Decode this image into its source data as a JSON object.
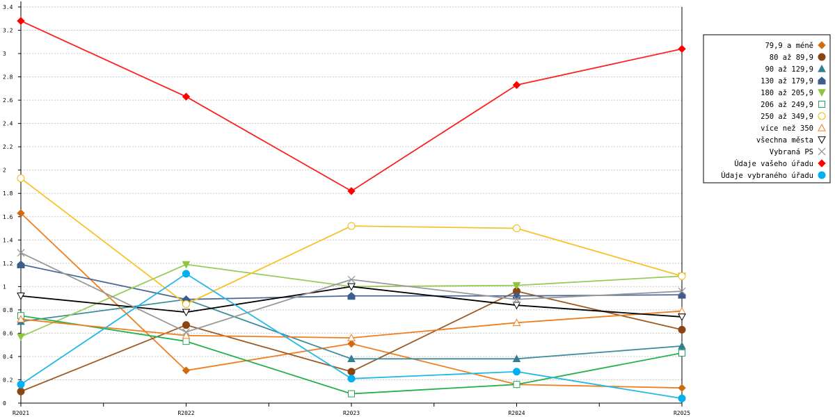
{
  "chart_data": {
    "type": "line",
    "title": "",
    "xlabel": "",
    "ylabel": "",
    "categories": [
      "R2021",
      "R2022",
      "R2023",
      "R2024",
      "R2025"
    ],
    "ylim": [
      0,
      3.4
    ],
    "yticks": [
      "0",
      "0.2",
      "0.4",
      "0.6",
      "0.8",
      "1",
      "1.2",
      "1.4",
      "1.6",
      "1.8",
      "2",
      "2.2",
      "2.4",
      "2.6",
      "2.8",
      "3",
      "3.2",
      "3.4"
    ],
    "grid": true,
    "legend_position": "right",
    "series": [
      {
        "name": "79,9 a méně",
        "color": "#f07d1e",
        "marker": "diamond",
        "marker_color": "#d06c10",
        "marker_fill": true,
        "values": [
          1.63,
          0.28,
          0.51,
          0.16,
          0.13
        ]
      },
      {
        "name": "80 až 89,9",
        "color": "#9c5a24",
        "marker": "circle",
        "marker_color": "#8b4513",
        "marker_fill": true,
        "values": [
          0.1,
          0.67,
          0.27,
          0.96,
          0.63
        ]
      },
      {
        "name": "90 až 129,9",
        "color": "#3d8b9e",
        "marker": "triangle-up",
        "marker_color": "#337e90",
        "marker_fill": true,
        "values": [
          0.7,
          0.89,
          0.38,
          0.38,
          0.49
        ]
      },
      {
        "name": "130 až 179,9",
        "color": "#4b6a95",
        "marker": "house",
        "marker_color": "#3b5e8c",
        "marker_fill": true,
        "values": [
          1.19,
          0.89,
          0.92,
          0.92,
          0.93
        ]
      },
      {
        "name": "180 až 205,9",
        "color": "#97cc5a",
        "marker": "triangle-down",
        "marker_color": "#8fc441",
        "marker_fill": true,
        "values": [
          0.57,
          1.19,
          1.0,
          1.01,
          1.09
        ]
      },
      {
        "name": "206 až 249,9",
        "color": "#22b14c",
        "marker": "square",
        "marker_color": "#22a060",
        "marker_fill": false,
        "values": [
          0.75,
          0.53,
          0.08,
          0.16,
          0.43
        ]
      },
      {
        "name": "250 až 349,9",
        "color": "#f8c227",
        "marker": "circle",
        "marker_color": "#f5b800",
        "marker_fill": false,
        "values": [
          1.93,
          0.85,
          1.52,
          1.5,
          1.09
        ]
      },
      {
        "name": "více než 350",
        "color": "#f07d1e",
        "marker": "triangle-up",
        "marker_color": "#f07d1e",
        "marker_fill": false,
        "values": [
          0.72,
          0.58,
          0.56,
          0.69,
          0.79
        ]
      },
      {
        "name": "všechna města",
        "color": "#000000",
        "marker": "triangle-down",
        "marker_color": "#000000",
        "marker_fill": false,
        "values": [
          0.92,
          0.78,
          1.0,
          0.84,
          0.74
        ]
      },
      {
        "name": "Vybraná PS",
        "color": "#999999",
        "marker": "cross",
        "marker_color": "#999999",
        "marker_fill": false,
        "values": [
          1.29,
          0.61,
          1.06,
          0.89,
          0.96
        ]
      },
      {
        "name": "Údaje vašeho úřadu",
        "color": "#ff2020",
        "marker": "diamond",
        "marker_color": "#ff0000",
        "marker_fill": true,
        "values": [
          3.28,
          2.63,
          1.82,
          2.73,
          3.04
        ]
      },
      {
        "name": "Údaje vybraného úřadu",
        "color": "#21b8e8",
        "marker": "circle",
        "marker_color": "#00b0f0",
        "marker_fill": true,
        "values": [
          0.16,
          1.11,
          0.21,
          0.27,
          0.04
        ]
      }
    ]
  }
}
